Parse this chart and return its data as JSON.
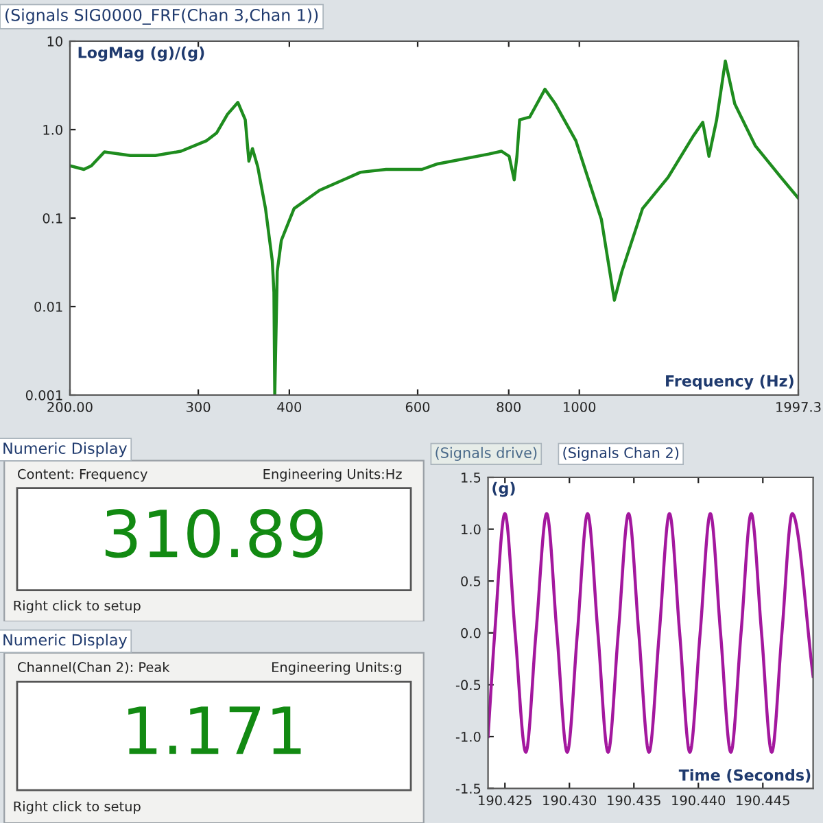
{
  "chart_data": [
    {
      "type": "line",
      "title": "(Signals SIG0000_FRF(Chan 3,Chan 1))",
      "ylabel": "LogMag (g)/(g)",
      "xlabel": "Frequency (Hz)",
      "log": "xy",
      "xlim": [
        200,
        1997.3
      ],
      "xticks": [
        {
          "value": 200,
          "label": "200.00"
        },
        300,
        400,
        600,
        800,
        1000,
        {
          "value": 1997.3,
          "label": "1997.3"
        }
      ],
      "ylim": [
        0.001,
        10
      ],
      "yticks": [
        0.001,
        0.01,
        0.1,
        {
          "value": 1,
          "label": "1.0"
        },
        10
      ],
      "series": [
        {
          "color": "#1e8c1e",
          "x": [
            200,
            209,
            214,
            223,
            242,
            262,
            284,
            308,
            318,
            329,
            340,
            348,
            352,
            356,
            362,
            371,
            379,
            381,
            382,
            385,
            390,
            406,
            440,
            501,
            543,
            608,
            639,
            751,
            782,
            801,
            814,
            821,
            828,
            855,
            897,
            927,
            989,
            1072,
            1117,
            1144,
            1221,
            1324,
            1435,
            1477,
            1506,
            1543,
            1586,
            1634,
            1743,
            1890,
            1997
          ],
          "values": [
            0.39,
            0.355,
            0.39,
            0.56,
            0.51,
            0.51,
            0.57,
            0.75,
            0.92,
            1.49,
            2.03,
            1.29,
            0.44,
            0.61,
            0.38,
            0.128,
            0.033,
            0.0145,
            0.001,
            0.025,
            0.056,
            0.128,
            0.206,
            0.33,
            0.355,
            0.355,
            0.41,
            0.53,
            0.57,
            0.5,
            0.27,
            0.5,
            1.29,
            1.39,
            2.86,
            1.95,
            0.75,
            0.097,
            0.0118,
            0.025,
            0.128,
            0.29,
            0.86,
            1.21,
            0.5,
            1.29,
            5.96,
            1.95,
            0.66,
            0.29,
            0.168
          ]
        }
      ]
    },
    {
      "type": "other",
      "title": "Numeric Display",
      "annotations": [
        "Content: Frequency",
        "Engineering Units:Hz",
        "310.89",
        "Right click to setup"
      ],
      "color": "#128a12"
    },
    {
      "type": "line",
      "title": "(Signals Chan 2)",
      "subtitle": "(Signals drive)",
      "ylabel": "(g)",
      "xlabel": "Time (Seconds)",
      "xlim": [
        190.42369,
        190.4489
      ],
      "xticks": [
        {
          "value": 190.425,
          "label": "190.425"
        },
        {
          "value": 190.43,
          "label": "190.430"
        },
        {
          "value": 190.435,
          "label": "190.435"
        },
        {
          "value": 190.44,
          "label": "190.440"
        },
        {
          "value": 190.445,
          "label": "190.445"
        }
      ],
      "ylim": [
        -1.5,
        1.5
      ],
      "yticks": [
        {
          "value": -1.5,
          "label": "-1.5"
        },
        {
          "value": -1,
          "label": "-1.0"
        },
        {
          "value": -0.5,
          "label": "-0.5"
        },
        {
          "value": 0,
          "label": "0.0"
        },
        0.5,
        {
          "value": 1,
          "label": "1.0"
        },
        1.5
      ],
      "series": [
        {
          "color": "#a3189e",
          "x": [
            190.42369,
            190.42421,
            190.425,
            190.42579,
            190.42662,
            190.42741,
            190.42824,
            190.42903,
            190.42983,
            190.43062,
            190.43141,
            190.43221,
            190.433,
            190.43379,
            190.43459,
            190.43538,
            190.43617,
            190.43697,
            190.43776,
            190.43855,
            190.43934,
            190.44014,
            190.44093,
            190.44172,
            190.44252,
            190.44331,
            190.4441,
            190.4449,
            190.44569,
            190.44648,
            190.44728,
            190.4489
          ],
          "values": [
            -1.0,
            0,
            1.15,
            0,
            -1.15,
            0,
            1.15,
            0,
            -1.15,
            0,
            1.15,
            0,
            -1.15,
            0,
            1.15,
            0,
            -1.15,
            0,
            1.15,
            0,
            -1.15,
            0,
            1.15,
            0,
            -1.15,
            0,
            1.15,
            0,
            -1.15,
            0,
            1.15,
            -0.42
          ]
        }
      ]
    },
    {
      "type": "other",
      "title": "Numeric Display",
      "annotations": [
        "Channel(Chan 2): Peak",
        "Engineering Units:g",
        "1.171",
        "Right click to setup"
      ],
      "color": "#128a12"
    }
  ]
}
